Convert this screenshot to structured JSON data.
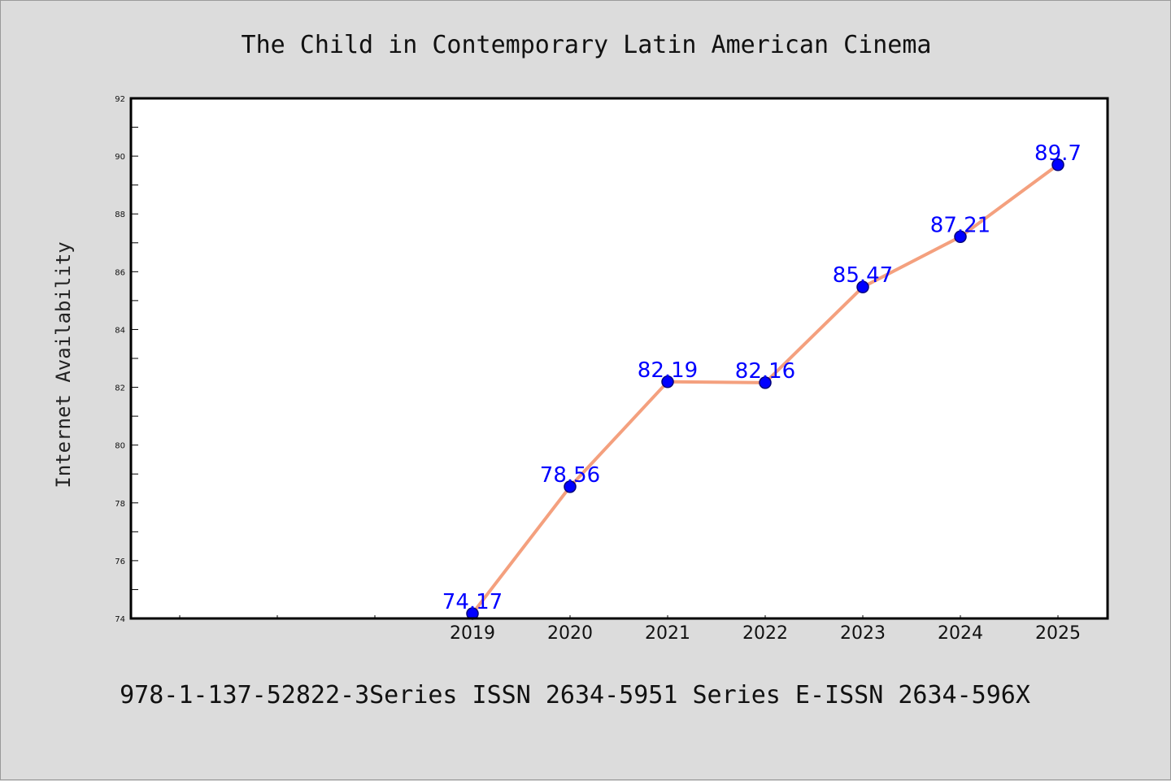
{
  "chart_data": {
    "type": "line",
    "title": "The Child in Contemporary Latin American Cinema",
    "xlabel": "",
    "ylabel": "Internet Availability",
    "x": [
      "2019",
      "2020",
      "2021",
      "2022",
      "2023",
      "2024",
      "2025"
    ],
    "series": [
      {
        "values": [
          74.17,
          78.56,
          82.19,
          82.16,
          85.47,
          87.21,
          89.7
        ]
      }
    ],
    "data_labels": [
      "74.17",
      "78.56",
      "82.19",
      "82.16",
      "85.47",
      "87.21",
      "89.7"
    ],
    "ylim": [
      74,
      92
    ],
    "yticks": [
      "74",
      "76",
      "78",
      "80",
      "82",
      "84",
      "86",
      "88",
      "90",
      "92"
    ],
    "grid": false,
    "legend": "none",
    "colors": {
      "line": "#f4a07e",
      "marker": "#0000ff",
      "marker_edge": "#00007a",
      "data_label": "#0000ff",
      "plot_background": "#ffffff",
      "figure_background": "#dcdcdc"
    }
  },
  "footer": "978-1-137-52822-3Series ISSN 2634-5951 Series E-ISSN 2634-596X"
}
